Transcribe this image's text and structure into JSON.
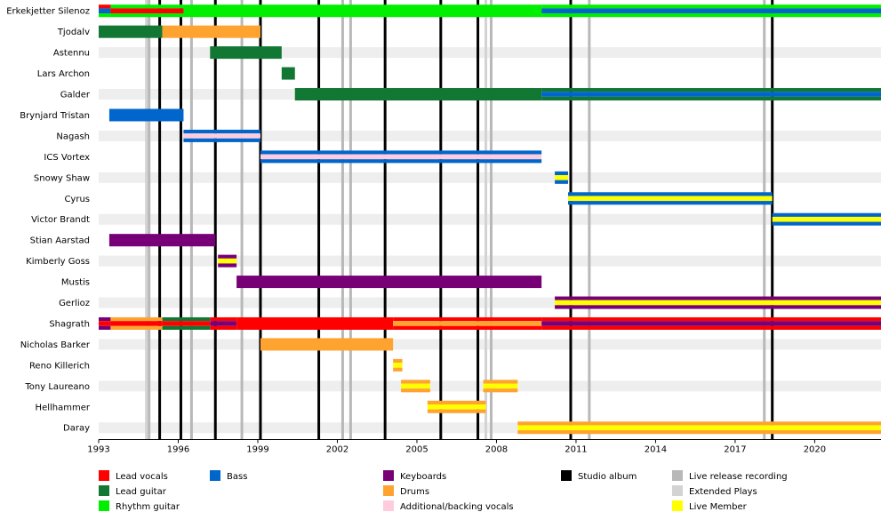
{
  "chart_data": {
    "type": "timeline",
    "x_range": [
      1993.0,
      2022.5
    ],
    "x_ticks": [
      "1993",
      "1996",
      "1999",
      "2002",
      "2005",
      "2008",
      "2011",
      "2014",
      "2017",
      "2020"
    ],
    "colors": {
      "lead_vocals": "#ff0000",
      "lead_guitar": "#117733",
      "rhythm_guitar": "#00ee00",
      "bass": "#0066cc",
      "keyboards": "#770077",
      "drums": "#ffa330",
      "backing_vocals": "#ffccdd",
      "studio_album": "#000000",
      "live_release": "#b8b8b8",
      "ep": "#d3d3d3",
      "live_member": "#ffff00"
    },
    "members": [
      {
        "name": "Erkekjetter Silenoz",
        "segments": [
          {
            "start": 1993.0,
            "end": 1993.45,
            "roles": [
              "lead_vocals",
              "bass",
              "rhythm_guitar"
            ]
          },
          {
            "start": 1993.45,
            "end": 1996.2,
            "roles": [
              "rhythm_guitar",
              "lead_vocals",
              "rhythm_guitar"
            ]
          },
          {
            "start": 1996.2,
            "end": 2009.7,
            "roles": [
              "rhythm_guitar"
            ]
          },
          {
            "start": 2009.7,
            "end": 2022.5,
            "roles": [
              "rhythm_guitar",
              "bass",
              "rhythm_guitar"
            ]
          }
        ]
      },
      {
        "name": "Tjodalv",
        "segments": [
          {
            "start": 1993.0,
            "end": 1995.4,
            "roles": [
              "lead_guitar"
            ]
          },
          {
            "start": 1995.4,
            "end": 1999.1,
            "roles": [
              "drums"
            ]
          }
        ]
      },
      {
        "name": "Astennu",
        "segments": [
          {
            "start": 1997.2,
            "end": 1999.9,
            "roles": [
              "lead_guitar"
            ]
          }
        ]
      },
      {
        "name": "Lars Archon",
        "segments": [
          {
            "start": 1999.9,
            "end": 2000.4,
            "roles": [
              "lead_guitar"
            ]
          }
        ]
      },
      {
        "name": "Galder",
        "segments": [
          {
            "start": 2000.4,
            "end": 2009.7,
            "roles": [
              "lead_guitar"
            ]
          },
          {
            "start": 2009.7,
            "end": 2022.5,
            "roles": [
              "lead_guitar",
              "bass",
              "lead_guitar"
            ]
          }
        ]
      },
      {
        "name": "Brynjard Tristan",
        "segments": [
          {
            "start": 1993.4,
            "end": 1996.2,
            "roles": [
              "bass"
            ]
          }
        ]
      },
      {
        "name": "Nagash",
        "segments": [
          {
            "start": 1996.2,
            "end": 1999.1,
            "roles": [
              "bass",
              "backing_vocals",
              "bass"
            ]
          }
        ]
      },
      {
        "name": "ICS Vortex",
        "segments": [
          {
            "start": 1999.1,
            "end": 2009.7,
            "roles": [
              "bass",
              "backing_vocals",
              "bass"
            ]
          }
        ]
      },
      {
        "name": "Snowy Shaw",
        "segments": [
          {
            "start": 2010.2,
            "end": 2010.7,
            "roles": [
              "bass",
              "live_member",
              "bass"
            ]
          }
        ]
      },
      {
        "name": "Cyrus",
        "segments": [
          {
            "start": 2010.7,
            "end": 2018.4,
            "roles": [
              "bass",
              "live_member",
              "bass"
            ]
          }
        ]
      },
      {
        "name": "Victor Brandt",
        "segments": [
          {
            "start": 2018.4,
            "end": 2022.5,
            "roles": [
              "bass",
              "live_member",
              "bass"
            ]
          }
        ]
      },
      {
        "name": "Stian Aarstad",
        "segments": [
          {
            "start": 1993.4,
            "end": 1997.4,
            "roles": [
              "keyboards"
            ]
          }
        ]
      },
      {
        "name": "Kimberly Goss",
        "segments": [
          {
            "start": 1997.5,
            "end": 1998.2,
            "roles": [
              "keyboards",
              "live_member",
              "keyboards"
            ]
          }
        ]
      },
      {
        "name": "Mustis",
        "segments": [
          {
            "start": 1998.2,
            "end": 2009.7,
            "roles": [
              "keyboards"
            ]
          }
        ]
      },
      {
        "name": "Gerlioz",
        "segments": [
          {
            "start": 2010.2,
            "end": 2022.5,
            "roles": [
              "keyboards",
              "live_member",
              "keyboards"
            ]
          }
        ]
      },
      {
        "name": "Shagrath",
        "segments": [
          {
            "start": 1993.0,
            "end": 1993.45,
            "roles": [
              "keyboards",
              "lead_vocals",
              "keyboards"
            ]
          },
          {
            "start": 1993.45,
            "end": 1995.4,
            "roles": [
              "drums",
              "lead_vocals",
              "drums"
            ]
          },
          {
            "start": 1995.4,
            "end": 1997.2,
            "roles": [
              "lead_guitar",
              "lead_vocals",
              "lead_guitar"
            ]
          },
          {
            "start": 1997.2,
            "end": 1998.2,
            "roles": [
              "lead_vocals",
              "keyboards",
              "lead_vocals"
            ]
          },
          {
            "start": 1998.2,
            "end": 2004.1,
            "roles": [
              "lead_vocals"
            ]
          },
          {
            "start": 2004.1,
            "end": 2009.7,
            "roles": [
              "lead_vocals",
              "drums",
              "lead_vocals"
            ]
          },
          {
            "start": 2009.7,
            "end": 2022.5,
            "roles": [
              "lead_vocals",
              "keyboards",
              "lead_vocals"
            ]
          }
        ]
      },
      {
        "name": "Nicholas Barker",
        "segments": [
          {
            "start": 1999.1,
            "end": 2004.1,
            "roles": [
              "drums"
            ]
          }
        ]
      },
      {
        "name": "Reno Killerich",
        "segments": [
          {
            "start": 2004.1,
            "end": 2004.45,
            "roles": [
              "drums",
              "live_member",
              "drums"
            ]
          }
        ]
      },
      {
        "name": "Tony Laureano",
        "segments": [
          {
            "start": 2004.4,
            "end": 2005.5,
            "roles": [
              "drums",
              "live_member",
              "drums"
            ]
          },
          {
            "start": 2007.5,
            "end": 2008.8,
            "roles": [
              "drums",
              "live_member",
              "drums"
            ]
          }
        ]
      },
      {
        "name": "Hellhammer",
        "segments": [
          {
            "start": 2005.4,
            "end": 2007.6,
            "roles": [
              "drums",
              "live_member",
              "drums"
            ]
          }
        ]
      },
      {
        "name": "Daray",
        "segments": [
          {
            "start": 2008.8,
            "end": 2022.5,
            "roles": [
              "drums",
              "live_member",
              "drums"
            ]
          }
        ]
      }
    ],
    "studio_albums": [
      1995.3,
      1996.1,
      1997.4,
      1999.1,
      2001.3,
      2003.8,
      2005.9,
      2007.3,
      2010.8,
      2018.4
    ],
    "live_releases": [
      1994.9,
      1996.5,
      1998.4,
      2002.2,
      2002.5,
      2007.8,
      2011.5,
      2018.1
    ],
    "eps": [
      1994.8,
      2007.6
    ],
    "legend": [
      {
        "key": "lead_vocals",
        "label": "Lead vocals"
      },
      {
        "key": "lead_guitar",
        "label": "Lead guitar"
      },
      {
        "key": "rhythm_guitar",
        "label": "Rhythm guitar"
      },
      {
        "key": "bass",
        "label": "Bass"
      },
      {
        "key": "keyboards",
        "label": "Keyboards"
      },
      {
        "key": "drums",
        "label": "Drums"
      },
      {
        "key": "backing_vocals",
        "label": "Additional/backing vocals"
      },
      {
        "key": "studio_album",
        "label": "Studio album"
      },
      {
        "key": "live_release",
        "label": "Live release recording"
      },
      {
        "key": "ep",
        "label": "Extended Plays"
      },
      {
        "key": "live_member",
        "label": "Live Member"
      }
    ]
  }
}
